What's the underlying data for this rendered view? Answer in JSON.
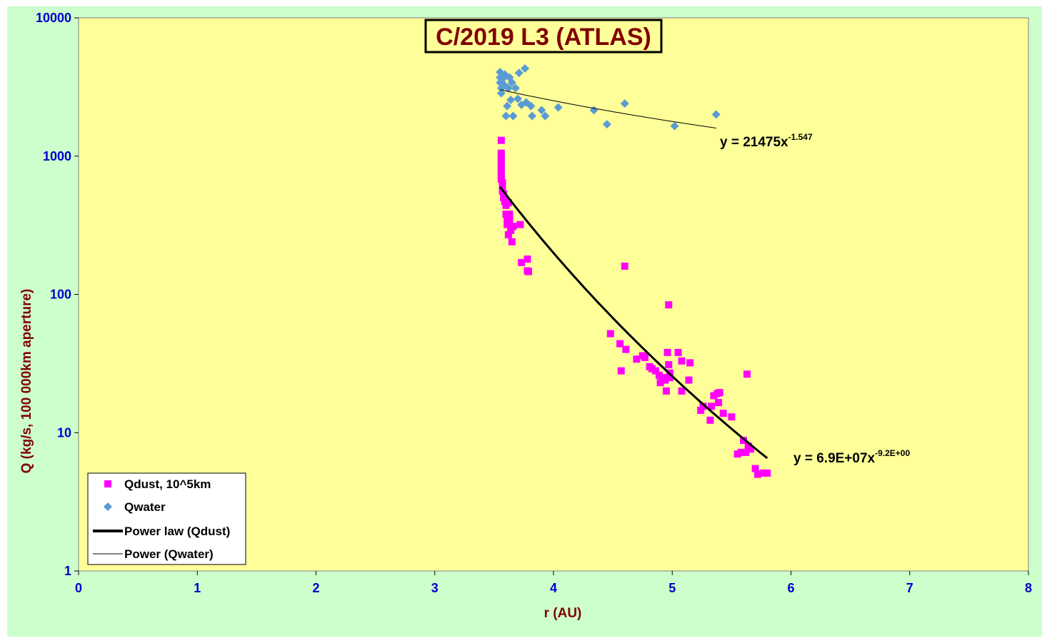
{
  "colors": {
    "chart_background": "#ccffcc",
    "plot_background": "#ffff99",
    "dust": "#ff00ff",
    "water": "#5b9bd5",
    "fit": "#000000",
    "tick_text": "#0000cc",
    "title_text": "#800000"
  },
  "chart_data": {
    "type": "scatter",
    "title": "C/2019 L3 (ATLAS)",
    "xlabel": "r (AU)",
    "ylabel": "Q (kg/s, 100 000km aperture)",
    "xlim": [
      0,
      8
    ],
    "ylim": [
      1,
      10000
    ],
    "yscale": "log",
    "grid": false,
    "legend_position": "bottom-left",
    "x_ticks": [
      "0",
      "1",
      "2",
      "3",
      "4",
      "5",
      "6",
      "7",
      "8"
    ],
    "y_ticks": [
      "1",
      "10",
      "100",
      "1000",
      "10000"
    ],
    "series": [
      {
        "name": "Qdust, 10^5km",
        "marker": "square",
        "color": "#ff00ff",
        "points": [
          [
            3.56,
            1300
          ],
          [
            3.56,
            1050
          ],
          [
            3.56,
            1000
          ],
          [
            3.56,
            950
          ],
          [
            3.56,
            900
          ],
          [
            3.56,
            850
          ],
          [
            3.56,
            800
          ],
          [
            3.56,
            760
          ],
          [
            3.56,
            720
          ],
          [
            3.56,
            680
          ],
          [
            3.57,
            640
          ],
          [
            3.57,
            600
          ],
          [
            3.57,
            560
          ],
          [
            3.58,
            530
          ],
          [
            3.58,
            500
          ],
          [
            3.59,
            470
          ],
          [
            3.6,
            440
          ],
          [
            3.6,
            380
          ],
          [
            3.61,
            350
          ],
          [
            3.61,
            320
          ],
          [
            3.62,
            460
          ],
          [
            3.62,
            270
          ],
          [
            3.63,
            380
          ],
          [
            3.63,
            340
          ],
          [
            3.64,
            290
          ],
          [
            3.65,
            310
          ],
          [
            3.65,
            240
          ],
          [
            3.66,
            310
          ],
          [
            3.72,
            320
          ],
          [
            3.73,
            170
          ],
          [
            3.78,
            180
          ],
          [
            3.78,
            148
          ],
          [
            3.79,
            146
          ],
          [
            4.48,
            52
          ],
          [
            4.56,
            44
          ],
          [
            4.57,
            28
          ],
          [
            4.6,
            160
          ],
          [
            4.61,
            40
          ],
          [
            4.7,
            34
          ],
          [
            4.75,
            36
          ],
          [
            4.77,
            35
          ],
          [
            4.81,
            30
          ],
          [
            4.83,
            29
          ],
          [
            4.86,
            28
          ],
          [
            4.89,
            26
          ],
          [
            4.9,
            23
          ],
          [
            4.92,
            25
          ],
          [
            4.94,
            24
          ],
          [
            4.95,
            20
          ],
          [
            4.96,
            38
          ],
          [
            4.97,
            84
          ],
          [
            4.97,
            31
          ],
          [
            4.98,
            27
          ],
          [
            4.98,
            25
          ],
          [
            5.05,
            38
          ],
          [
            5.08,
            33
          ],
          [
            5.08,
            20
          ],
          [
            5.14,
            24
          ],
          [
            5.15,
            32
          ],
          [
            5.24,
            14.5
          ],
          [
            5.26,
            15.5
          ],
          [
            5.32,
            12.3
          ],
          [
            5.33,
            15.5
          ],
          [
            5.35,
            18.5
          ],
          [
            5.38,
            19.2
          ],
          [
            5.39,
            16.5
          ],
          [
            5.4,
            19.5
          ],
          [
            5.43,
            13.8
          ],
          [
            5.5,
            13
          ],
          [
            5.55,
            7
          ],
          [
            5.58,
            7.2
          ],
          [
            5.6,
            8.8
          ],
          [
            5.62,
            7.2
          ],
          [
            5.63,
            26.5
          ],
          [
            5.64,
            8
          ],
          [
            5.66,
            7.6
          ],
          [
            5.7,
            5.5
          ],
          [
            5.72,
            5
          ],
          [
            5.77,
            5.1
          ],
          [
            5.8,
            5.1
          ]
        ]
      },
      {
        "name": "Qwater",
        "marker": "diamond",
        "color": "#5b9bd5",
        "points": [
          [
            3.55,
            4050
          ],
          [
            3.55,
            3700
          ],
          [
            3.55,
            3400
          ],
          [
            3.56,
            3100
          ],
          [
            3.56,
            2850
          ],
          [
            3.57,
            3600
          ],
          [
            3.58,
            3300
          ],
          [
            3.59,
            3900
          ],
          [
            3.6,
            1950
          ],
          [
            3.61,
            2300
          ],
          [
            3.62,
            3100
          ],
          [
            3.63,
            3700
          ],
          [
            3.64,
            2550
          ],
          [
            3.65,
            3400
          ],
          [
            3.66,
            1950
          ],
          [
            3.68,
            3100
          ],
          [
            3.7,
            2600
          ],
          [
            3.71,
            4000
          ],
          [
            3.73,
            2350
          ],
          [
            3.76,
            4300
          ],
          [
            3.77,
            2450
          ],
          [
            3.81,
            2300
          ],
          [
            3.82,
            1950
          ],
          [
            3.9,
            2150
          ],
          [
            3.93,
            1950
          ],
          [
            4.04,
            2250
          ],
          [
            4.34,
            2150
          ],
          [
            4.45,
            1700
          ],
          [
            4.6,
            2400
          ],
          [
            5.02,
            1650
          ],
          [
            5.37,
            2000
          ]
        ]
      },
      {
        "name": "Power law (Qdust)",
        "kind": "fit",
        "equation": "y = 6.9E+07x-9.2E+00",
        "equation_base": "y = 6.9E+07x",
        "equation_exponent": "-9.2E+00",
        "coefficient": 69000000,
        "exponent": -9.2,
        "x_range": [
          3.55,
          5.8
        ],
        "color": "#000000"
      },
      {
        "name": "Power (Qwater)",
        "kind": "fit",
        "equation": "y = 21475x-1.547",
        "equation_base": "y = 21475x",
        "equation_exponent": "-1.547",
        "coefficient": 21475,
        "exponent": -1.547,
        "x_range": [
          3.55,
          5.37
        ],
        "color": "#000000"
      }
    ]
  }
}
